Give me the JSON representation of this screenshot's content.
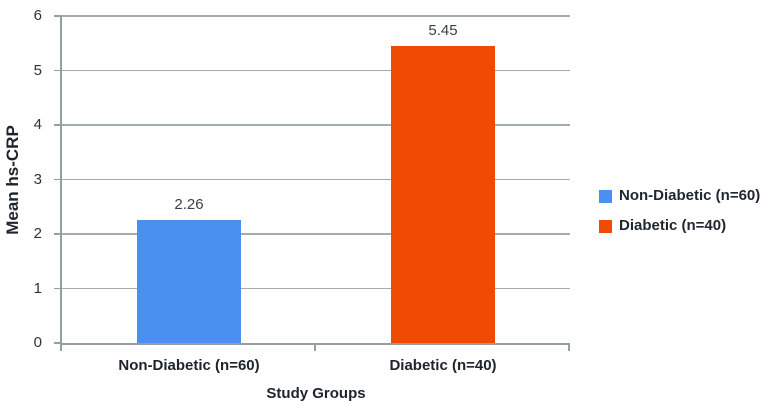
{
  "chart_data": {
    "type": "bar",
    "title": "",
    "categories": [
      "Non-Diabetic (n=60)",
      "Diabetic (n=40)"
    ],
    "values": [
      2.26,
      5.45
    ],
    "data_labels": [
      "2.26",
      "5.45"
    ],
    "bar_colors": [
      "#4A90F0",
      "#EF4B05"
    ],
    "xlabel": "Study Groups",
    "ylabel": "Mean hs-CRP",
    "ylim": [
      0,
      6
    ],
    "yticks": [
      0,
      1,
      2,
      3,
      4,
      5,
      6
    ],
    "grid": "horizontal",
    "legend": {
      "position": "right",
      "entries": [
        {
          "label": "Non-Diabetic (n=60)",
          "color": "#4A90F0"
        },
        {
          "label": "Diabetic (n=40)",
          "color": "#EF4B05"
        }
      ]
    }
  },
  "colors": {
    "background": "#FFFFFF",
    "gridline": "#A5ADA8",
    "axis": "#96A09B",
    "tick_label_text": "#2E3338",
    "data_label_text": "#3A3F45",
    "label_text": "#1E242C",
    "legend_text": "#1F262E"
  }
}
